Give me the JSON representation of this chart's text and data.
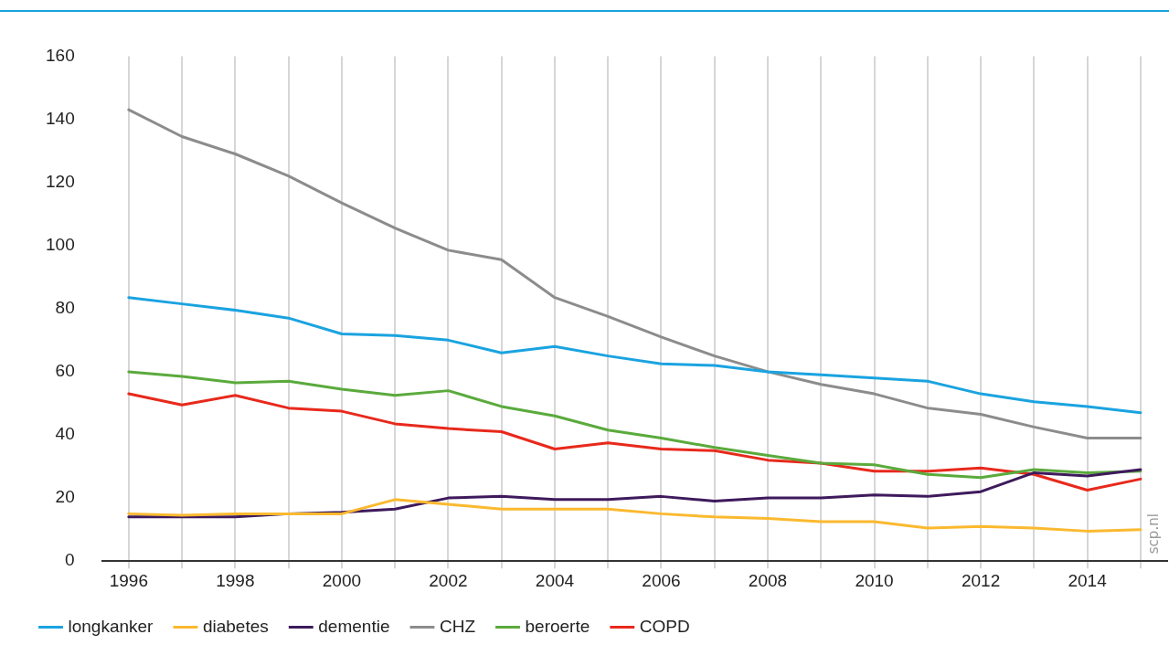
{
  "chart_data": {
    "type": "line",
    "x": [
      1996,
      1997,
      1998,
      1999,
      2000,
      2001,
      2002,
      2003,
      2004,
      2005,
      2006,
      2007,
      2008,
      2009,
      2010,
      2011,
      2012,
      2013,
      2014,
      2015
    ],
    "series": [
      {
        "name": "longkanker",
        "color": "#1aa3e0",
        "values": [
          83.5,
          81.5,
          79.5,
          77,
          72,
          71.5,
          70,
          66,
          68,
          65,
          62.5,
          62,
          60,
          59,
          58,
          57,
          53,
          50.5,
          49,
          47
        ]
      },
      {
        "name": "diabetes",
        "color": "#fbb92f",
        "values": [
          15,
          14.5,
          15,
          15,
          15,
          19.5,
          18,
          16.5,
          16.5,
          16.5,
          15,
          14,
          13.5,
          12.5,
          12.5,
          10.5,
          11,
          10.5,
          9.5,
          10
        ]
      },
      {
        "name": "dementie",
        "color": "#3e1a5c",
        "values": [
          14,
          14,
          14,
          15,
          15.5,
          16.5,
          20,
          20.5,
          19.5,
          19.5,
          20.5,
          19,
          20,
          20,
          21,
          20.5,
          22,
          28,
          27,
          29
        ]
      },
      {
        "name": "CHZ",
        "color": "#8c8c8c",
        "values": [
          143,
          134.5,
          129,
          122,
          113.5,
          105.5,
          98.5,
          95.5,
          83.5,
          77.5,
          71,
          65,
          60,
          56,
          53,
          48.5,
          46.5,
          42.5,
          39,
          39
        ]
      },
      {
        "name": "beroerte",
        "color": "#5aaa3c",
        "values": [
          60,
          58.5,
          56.5,
          57,
          54.5,
          52.5,
          54,
          49,
          46,
          41.5,
          39,
          36,
          33.5,
          31,
          30.5,
          27.5,
          26.5,
          29,
          28,
          28.5
        ]
      },
      {
        "name": "COPD",
        "color": "#e8291c",
        "values": [
          53,
          49.5,
          52.5,
          48.5,
          47.5,
          43.5,
          42,
          41,
          35.5,
          37.5,
          35.5,
          35,
          32,
          31,
          28.5,
          28.5,
          29.5,
          27.5,
          22.5,
          26
        ]
      }
    ],
    "xlim": [
      1995.5,
      2015.5
    ],
    "xticks": [
      1996,
      {
        "value": 1997,
        "label": null
      },
      1998,
      {
        "value": 1999,
        "label": null
      },
      2000,
      {
        "value": 2001,
        "label": null
      },
      2002,
      {
        "value": 2003,
        "label": null
      },
      2004,
      {
        "value": 2005,
        "label": null
      },
      2006,
      {
        "value": 2007,
        "label": null
      },
      2008,
      {
        "value": 2009,
        "label": null
      },
      2010,
      {
        "value": 2011,
        "label": null
      },
      2012,
      {
        "value": 2013,
        "label": null
      },
      2014,
      {
        "value": 2015,
        "label": null
      }
    ],
    "ylim": [
      0,
      160
    ],
    "yticks": [
      0,
      20,
      40,
      60,
      80,
      100,
      120,
      140,
      160
    ],
    "grid": "x",
    "legend": "bottom left",
    "marker": "none",
    "line_style": "solid",
    "annotations": [
      "scp.nl"
    ]
  }
}
